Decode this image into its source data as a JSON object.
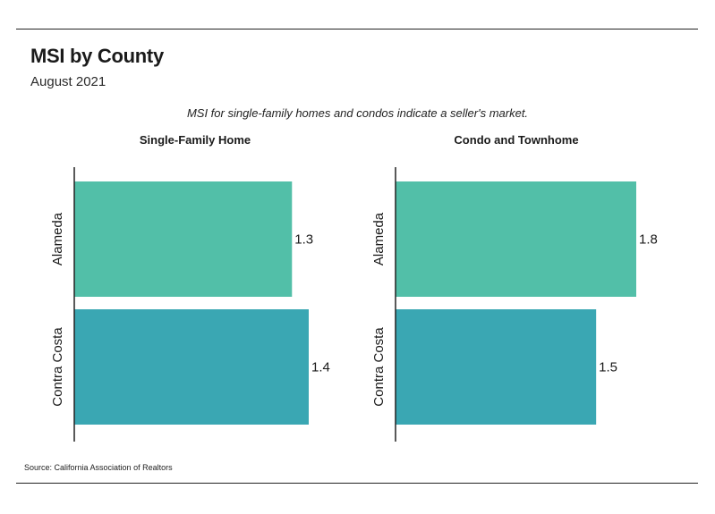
{
  "title": "MSI by County",
  "subtitle": "August 2021",
  "annotation": "MSI for single-family homes and condos indicate a seller's market.",
  "source": "Source:  California Association of Realtors",
  "colors": {
    "alameda": "#52bfa8",
    "contra_costa": "#3aa7b3",
    "axis": "#222222"
  },
  "chart_data": [
    {
      "type": "bar",
      "orientation": "horizontal",
      "title": "Single-Family Home",
      "categories": [
        "Alameda",
        "Contra Costa"
      ],
      "values": [
        1.3,
        1.4
      ],
      "data_labels": [
        "1.3",
        "1.4"
      ],
      "xlim": [
        0,
        1.4
      ],
      "grid": false
    },
    {
      "type": "bar",
      "orientation": "horizontal",
      "title": "Condo and Townhome",
      "categories": [
        "Alameda",
        "Contra Costa"
      ],
      "values": [
        1.8,
        1.5
      ],
      "data_labels": [
        "1.8",
        "1.5"
      ],
      "xlim": [
        0,
        1.8
      ],
      "grid": false
    }
  ]
}
